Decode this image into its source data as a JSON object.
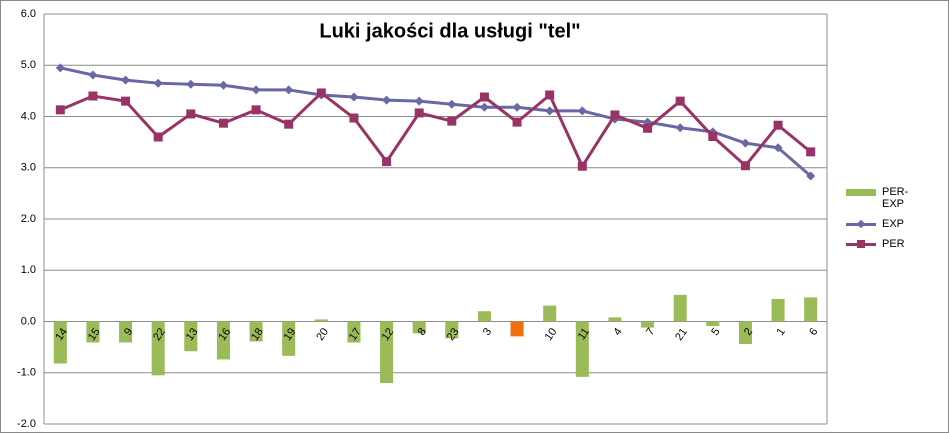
{
  "chart_data": {
    "type": "combo",
    "title": "Luki jakości dla usługi \"tel\"",
    "categories": [
      "14",
      "15",
      "9",
      "22",
      "13",
      "16",
      "18",
      "19",
      "20",
      "17",
      "12",
      "8",
      "23",
      "3",
      null,
      "10",
      "11",
      "4",
      "7",
      "21",
      "5",
      "2",
      "1",
      "6"
    ],
    "series": [
      {
        "name": "PER-EXP",
        "type": "bar",
        "color": "#9bbb59",
        "highlight_index": 14,
        "highlight_color": "#f07010",
        "values": [
          -0.82,
          -0.41,
          -0.41,
          -1.05,
          -0.58,
          -0.74,
          -0.39,
          -0.67,
          0.04,
          -0.41,
          -1.2,
          -0.23,
          -0.33,
          0.2,
          -0.29,
          0.31,
          -1.08,
          0.08,
          -0.12,
          0.52,
          -0.09,
          -0.44,
          0.44,
          0.47
        ]
      },
      {
        "name": "EXP",
        "type": "line",
        "marker": "diamond",
        "color": "#6868a4",
        "values": [
          4.95,
          4.81,
          4.71,
          4.65,
          4.63,
          4.61,
          4.52,
          4.52,
          4.42,
          4.38,
          4.32,
          4.3,
          4.24,
          4.18,
          4.18,
          4.11,
          4.11,
          3.95,
          3.89,
          3.78,
          3.7,
          3.48,
          3.39,
          2.84
        ]
      },
      {
        "name": "PER",
        "type": "line",
        "marker": "square",
        "color": "#993366",
        "values": [
          4.13,
          4.4,
          4.3,
          3.6,
          4.05,
          3.87,
          4.13,
          3.85,
          4.46,
          3.97,
          3.12,
          4.07,
          3.91,
          4.38,
          3.89,
          4.42,
          3.03,
          4.03,
          3.77,
          4.3,
          3.61,
          3.04,
          3.83,
          3.31
        ]
      }
    ],
    "ylim": [
      -2,
      6
    ],
    "yticks": [
      {
        "value": -2,
        "label": "-2.0"
      },
      {
        "value": -1,
        "label": "-1.0"
      },
      {
        "value": 0,
        "label": "0.0"
      },
      {
        "value": 1,
        "label": "1.0"
      },
      {
        "value": 2,
        "label": "2.0"
      },
      {
        "value": 3,
        "label": "3.0"
      },
      {
        "value": 4,
        "label": "4.0"
      },
      {
        "value": 5,
        "label": "5.0"
      },
      {
        "value": 6,
        "label": "6.0"
      }
    ],
    "grid": true,
    "legend": "right"
  }
}
